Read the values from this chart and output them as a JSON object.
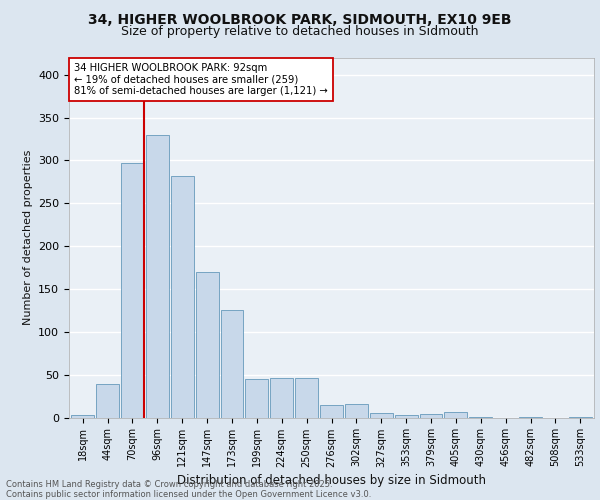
{
  "title1": "34, HIGHER WOOLBROOK PARK, SIDMOUTH, EX10 9EB",
  "title2": "Size of property relative to detached houses in Sidmouth",
  "xlabel": "Distribution of detached houses by size in Sidmouth",
  "ylabel": "Number of detached properties",
  "bar_labels": [
    "18sqm",
    "44sqm",
    "70sqm",
    "96sqm",
    "121sqm",
    "147sqm",
    "173sqm",
    "199sqm",
    "224sqm",
    "250sqm",
    "276sqm",
    "302sqm",
    "327sqm",
    "353sqm",
    "379sqm",
    "405sqm",
    "430sqm",
    "456sqm",
    "482sqm",
    "508sqm",
    "533sqm"
  ],
  "bar_values": [
    3,
    39,
    297,
    330,
    282,
    170,
    125,
    45,
    46,
    46,
    15,
    16,
    5,
    3,
    4,
    6,
    1,
    0,
    1,
    0,
    1
  ],
  "bar_color": "#c8d8ea",
  "bar_edge_color": "#6699bb",
  "vline_color": "#cc0000",
  "annotation_text": "34 HIGHER WOOLBROOK PARK: 92sqm\n← 19% of detached houses are smaller (259)\n81% of semi-detached houses are larger (1,121) →",
  "annotation_box_color": "#ffffff",
  "annotation_box_edge": "#cc0000",
  "bg_color": "#dce6f0",
  "plot_bg_color": "#eaf0f6",
  "grid_color": "#ffffff",
  "footnote": "Contains HM Land Registry data © Crown copyright and database right 2025.\nContains public sector information licensed under the Open Government Licence v3.0.",
  "ylim": [
    0,
    420
  ],
  "yticks": [
    0,
    50,
    100,
    150,
    200,
    250,
    300,
    350,
    400
  ]
}
